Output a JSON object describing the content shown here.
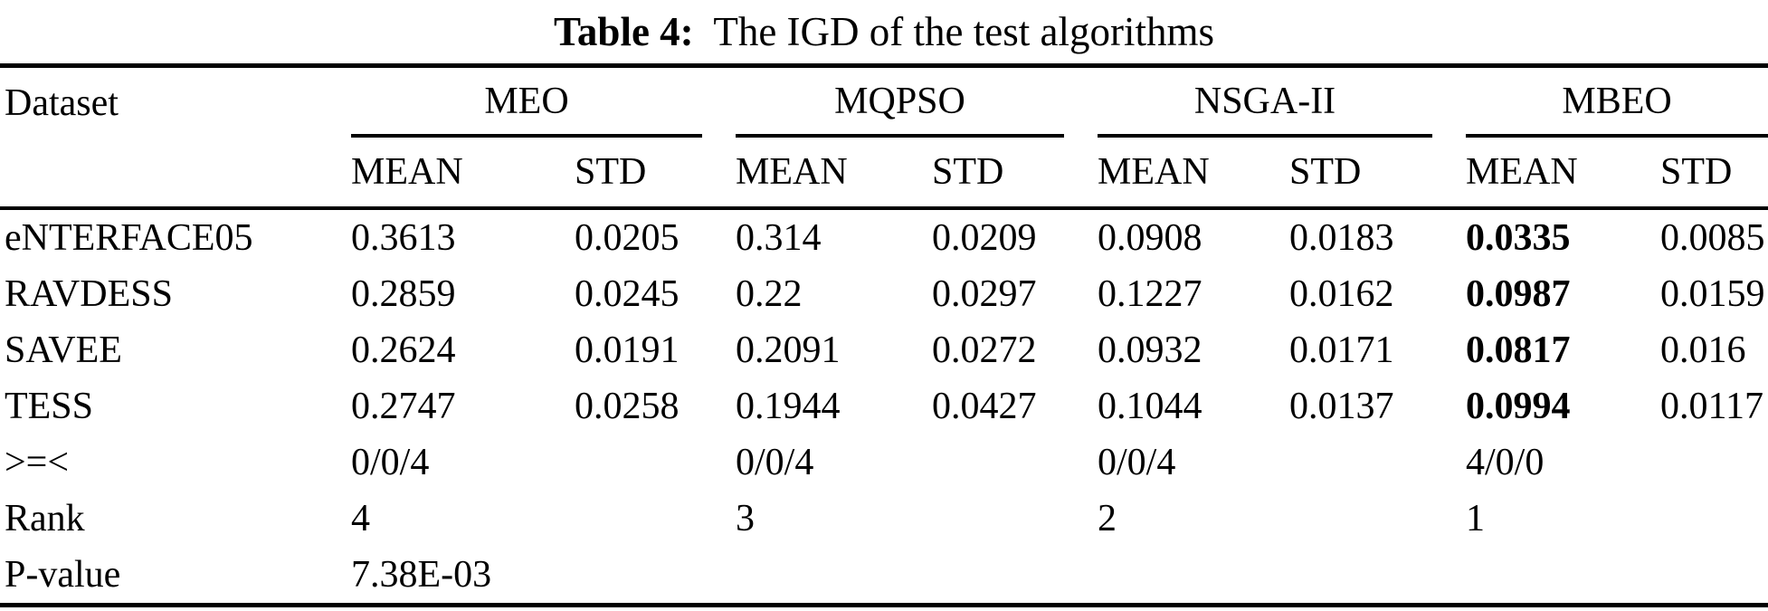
{
  "colors": {
    "text": "#000000",
    "background": "#ffffff",
    "rule": "#000000"
  },
  "caption": {
    "label": "Table 4:",
    "text": "  The IGD of the test algorithms"
  },
  "table": {
    "row_header": "Dataset",
    "groups": [
      {
        "name": "MEO"
      },
      {
        "name": "MQPSO"
      },
      {
        "name": "NSGA-II"
      },
      {
        "name": "MBEO"
      }
    ],
    "subheaders": [
      "MEAN",
      "STD",
      "MEAN",
      "STD",
      "MEAN",
      "STD",
      "MEAN",
      "STD"
    ],
    "rows": [
      {
        "label": "eNTERFACE05",
        "values": [
          "0.3613",
          "0.0205",
          "0.314",
          "0.0209",
          "0.0908",
          "0.0183",
          "0.0335",
          "0.0085"
        ],
        "bold_indices": [
          6
        ]
      },
      {
        "label": "RAVDESS",
        "values": [
          "0.2859",
          "0.0245",
          "0.22",
          "0.0297",
          "0.1227",
          "0.0162",
          "0.0987",
          "0.0159"
        ],
        "bold_indices": [
          6
        ]
      },
      {
        "label": "SAVEE",
        "values": [
          "0.2624",
          "0.0191",
          "0.2091",
          "0.0272",
          "0.0932",
          "0.0171",
          "0.0817",
          "0.016"
        ],
        "bold_indices": [
          6
        ]
      },
      {
        "label": "TESS",
        "values": [
          "0.2747",
          "0.0258",
          "0.1944",
          "0.0427",
          "0.1044",
          "0.0137",
          "0.0994",
          "0.0117"
        ],
        "bold_indices": [
          6
        ]
      },
      {
        "label": ">=<",
        "values": [
          "0/0/4",
          "",
          "0/0/4",
          "",
          "0/0/4",
          "",
          "4/0/0",
          ""
        ],
        "bold_indices": []
      },
      {
        "label": "Rank",
        "values": [
          "4",
          "",
          "3",
          "",
          "2",
          "",
          "1",
          ""
        ],
        "bold_indices": []
      },
      {
        "label": "P-value",
        "values": [
          "7.38E-03",
          "",
          "",
          "",
          "",
          "",
          "",
          ""
        ],
        "bold_indices": []
      }
    ]
  }
}
